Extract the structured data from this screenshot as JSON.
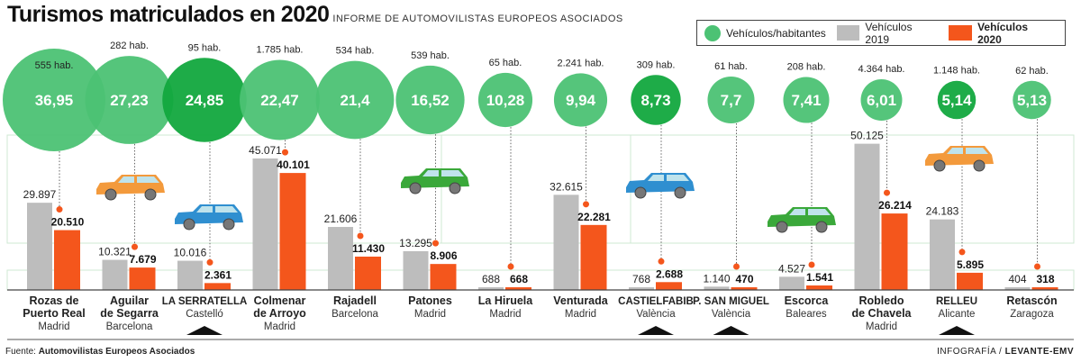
{
  "header": {
    "title": "Turismos matriculados en 2020",
    "subtitle": "INFORME DE AUTOMOVILISTAS EUROPEOS ASOCIADOS"
  },
  "legend": {
    "bubble": "Vehículos/habitantes",
    "y2019": "Vehículos 2019",
    "y2020": "Vehículos 2020"
  },
  "colors": {
    "bubble": "#4cc274",
    "bubble_highlight": "#12a83e",
    "y2019": "#bdbdbd",
    "y2020": "#f4561c",
    "highlight_marker": "#111111"
  },
  "chart_data": {
    "type": "bar",
    "series": [
      {
        "name": "Vehículos 2019",
        "values": [
          29897,
          10321,
          10016,
          45071,
          21606,
          13295,
          688,
          32615,
          768,
          1140,
          4527,
          50125,
          24183,
          404
        ]
      },
      {
        "name": "Vehículos 2020",
        "values": [
          20510,
          7679,
          2361,
          40101,
          11430,
          8906,
          668,
          22281,
          2688,
          470,
          1541,
          26214,
          5895,
          318
        ]
      }
    ],
    "bubble_series": {
      "name": "Vehículos/habitantes",
      "values": [
        "36,95",
        "27,23",
        "24,85",
        "22,47",
        "21,4",
        "16,52",
        "10,28",
        "9,94",
        "8,73",
        "7,7",
        "7,41",
        "6,01",
        "5,14",
        "5,13"
      ]
    },
    "categories": [
      {
        "name": [
          "Rozas de",
          "Puerto Real"
        ],
        "region": "Madrid",
        "population": "555 hab.",
        "label2019": "29.897",
        "label2020": "20.510",
        "highlight": false
      },
      {
        "name": [
          "Aguilar",
          "de Segarra"
        ],
        "region": "Barcelona",
        "population": "282 hab.",
        "label2019": "10.321",
        "label2020": "7.679",
        "highlight": false
      },
      {
        "name": [
          "LA SERRATELLA"
        ],
        "region": "Castelló",
        "population": "95 hab.",
        "label2019": "10.016",
        "label2020": "2.361",
        "highlight": true
      },
      {
        "name": [
          "Colmenar",
          "de Arroyo"
        ],
        "region": "Madrid",
        "population": "1.785 hab.",
        "label2019": "45.071",
        "label2020": "40.101",
        "highlight": false
      },
      {
        "name": [
          "Rajadell"
        ],
        "region": "Barcelona",
        "population": "534 hab.",
        "label2019": "21.606",
        "label2020": "11.430",
        "highlight": false
      },
      {
        "name": [
          "Patones"
        ],
        "region": "Madrid",
        "population": "539 hab.",
        "label2019": "13.295",
        "label2020": "8.906",
        "highlight": false
      },
      {
        "name": [
          "La Hiruela"
        ],
        "region": "Madrid",
        "population": "65 hab.",
        "label2019": "688",
        "label2020": "668",
        "highlight": false
      },
      {
        "name": [
          "Venturada"
        ],
        "region": "Madrid",
        "population": "2.241 hab.",
        "label2019": "32.615",
        "label2020": "22.281",
        "highlight": false
      },
      {
        "name": [
          "CASTIELFABIB"
        ],
        "region": "València",
        "population": "309 hab.",
        "label2019": "768",
        "label2020": "2.688",
        "highlight": true
      },
      {
        "name": [
          "P. SAN MIGUEL"
        ],
        "region": "València",
        "population": "61 hab.",
        "label2019": "1.140",
        "label2020": "470",
        "highlight": true
      },
      {
        "name": [
          "Escorca"
        ],
        "region": "Baleares",
        "population": "208 hab.",
        "label2019": "4.527",
        "label2020": "1.541",
        "highlight": false
      },
      {
        "name": [
          "Robledo",
          "de Chavela"
        ],
        "region": "Madrid",
        "population": "4.364 hab.",
        "label2019": "50.125",
        "label2020": "26.214",
        "highlight": false
      },
      {
        "name": [
          "RELLEU"
        ],
        "region": "Alicante",
        "population": "1.148 hab.",
        "label2019": "24.183",
        "label2020": "5.895",
        "highlight": true
      },
      {
        "name": [
          "Retascón"
        ],
        "region": "Zaragoza",
        "population": "62 hab.",
        "label2019": "404",
        "label2020": "318",
        "highlight": false
      }
    ],
    "bubble_highlight": [
      false,
      false,
      true,
      false,
      false,
      false,
      false,
      false,
      true,
      false,
      false,
      false,
      true,
      false
    ],
    "legend_placement": "top-right",
    "grid": false
  },
  "cars": [
    {
      "icon": "minivan-icon",
      "color": "#f39a3c"
    },
    {
      "icon": "sedan-icon",
      "color": "#2f8fd0"
    },
    {
      "icon": "hatchback-icon",
      "color": "#3aa83a"
    },
    {
      "icon": "sedan-icon",
      "color": "#2f8fd0"
    },
    {
      "icon": "hatchback-icon",
      "color": "#3aa83a"
    },
    {
      "icon": "minivan-icon",
      "color": "#f39a3c"
    }
  ],
  "footer": {
    "source_label": "Fuente:",
    "source": "Automovilistas Europeos Asociados",
    "credit_prefix": "INFOGRAFÍA /",
    "credit": "LEVANTE-EMV"
  }
}
